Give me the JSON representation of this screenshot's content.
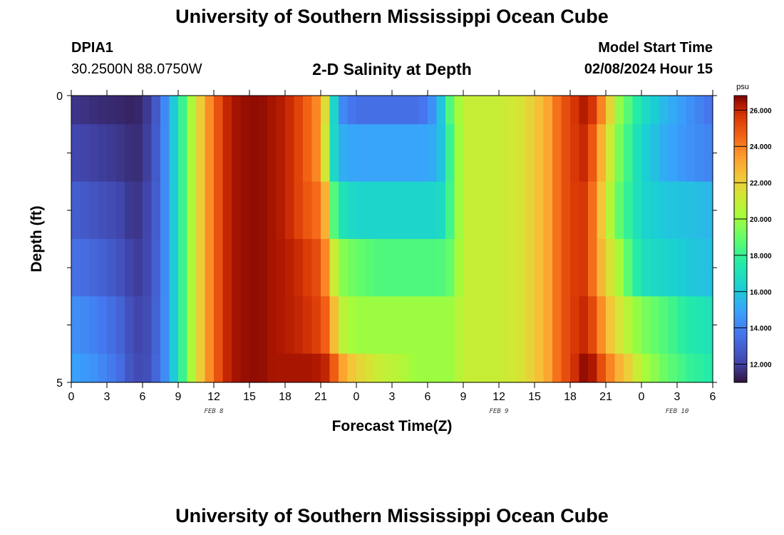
{
  "header": {
    "title": "University of Southern Mississippi Ocean Cube",
    "station": "DPIA1",
    "coords": "30.2500N  88.0750W",
    "subtitle": "2-D Salinity at Depth",
    "start_label": "Model Start Time",
    "start_value": "02/08/2024 Hour 15"
  },
  "footer": {
    "title": "University of Southern Mississippi Ocean Cube"
  },
  "chart_data": {
    "type": "heatmap",
    "title": "2-D Salinity at Depth",
    "xlabel": "Forecast Time(Z)",
    "ylabel": "Depth (ft)",
    "x_ticks": [
      "0",
      "3",
      "6",
      "9",
      "12",
      "15",
      "18",
      "21",
      "0",
      "3",
      "6",
      "9",
      "12",
      "15",
      "18",
      "21",
      "0",
      "3",
      "6"
    ],
    "x_tick_hours": [
      0,
      3,
      6,
      9,
      12,
      15,
      18,
      21,
      24,
      27,
      30,
      33,
      36,
      39,
      42,
      45,
      48,
      51,
      54
    ],
    "x_range_hours": [
      0,
      54
    ],
    "date_labels": [
      {
        "text": "FEB 8",
        "hour": 12
      },
      {
        "text": "FEB 9",
        "hour": 36
      },
      {
        "text": "FEB 10",
        "hour": 51
      }
    ],
    "y_range": [
      0,
      5
    ],
    "y_tick_labels": [
      "0",
      "5"
    ],
    "colorbar": {
      "unit": "psu",
      "min": 11,
      "max": 26.8,
      "ticks": [
        "12.000",
        "14.000",
        "16.000",
        "18.000",
        "20.000",
        "22.000",
        "24.000",
        "26.000"
      ],
      "tick_values": [
        12,
        14,
        16,
        18,
        20,
        22,
        24,
        26
      ]
    },
    "depth_bands": [
      0,
      0.5,
      1.5,
      2.5,
      3.5,
      4.5,
      5
    ],
    "profile_hours": [
      0,
      2,
      4,
      5,
      6,
      7,
      8,
      9,
      10,
      11,
      12,
      13,
      14,
      15,
      16,
      17,
      18,
      19,
      20,
      21,
      21.5,
      22,
      22.5,
      23,
      24,
      26,
      28,
      29,
      30,
      31,
      32,
      33,
      34,
      36,
      38,
      40,
      41,
      42,
      43,
      43.5,
      44,
      45,
      46,
      47,
      48,
      50,
      52,
      54
    ],
    "salinity_psu": [
      [
        11.8,
        11.6,
        11.5,
        11.4,
        11.5,
        12.5,
        14.5,
        17,
        20,
        22.5,
        24.5,
        26,
        26.5,
        26.6,
        26.6,
        26.4,
        26.2,
        25.5,
        24.5,
        23.5,
        21,
        17,
        15,
        14,
        13.5,
        13.5,
        13.5,
        13.5,
        13.8,
        15.5,
        19,
        21,
        21,
        21,
        21.5,
        23,
        24.5,
        25.5,
        26.2,
        26.5,
        25.5,
        23,
        20,
        18.5,
        17,
        15.5,
        14.5,
        13.5
      ],
      [
        12.2,
        12.0,
        11.8,
        11.6,
        11.6,
        12.6,
        14.5,
        17,
        20,
        22.5,
        24.5,
        26,
        26.5,
        26.6,
        26.6,
        26.4,
        26.2,
        25.5,
        24.5,
        23.5,
        20.5,
        17,
        15.5,
        15.2,
        15,
        15,
        15,
        15,
        15,
        15.5,
        18.5,
        21,
        21,
        21,
        21.5,
        23,
        24.5,
        25.5,
        26,
        26,
        24.5,
        22,
        19.5,
        18,
        16.5,
        15.2,
        14.5,
        14
      ],
      [
        13.0,
        12.6,
        12.2,
        11.8,
        11.8,
        12.7,
        14.5,
        17,
        20,
        22.5,
        24.5,
        26,
        26.5,
        26.6,
        26.6,
        26.4,
        26.2,
        25.5,
        24.8,
        24.2,
        22.5,
        19,
        17.5,
        17,
        16.5,
        16.5,
        16.5,
        16.5,
        16.5,
        16.5,
        18.5,
        21,
        21,
        21,
        21.5,
        23,
        24.5,
        25.5,
        25.8,
        25.5,
        24,
        21.5,
        19,
        17.8,
        16.5,
        16,
        15.8,
        15.5
      ],
      [
        13.6,
        13.2,
        12.6,
        12.0,
        11.9,
        12.8,
        14.5,
        17,
        20,
        22.5,
        24.5,
        26,
        26.5,
        26.6,
        26.6,
        26.4,
        26.3,
        26,
        25.5,
        25,
        23.5,
        21.5,
        20,
        19.5,
        19,
        18.5,
        18.5,
        18.5,
        18.5,
        18.5,
        19,
        21,
        21,
        21,
        21.5,
        23,
        24.5,
        25.5,
        25.8,
        25.5,
        24,
        22,
        20.5,
        18.5,
        17,
        16.5,
        16,
        15.8
      ],
      [
        14.5,
        14.0,
        13.2,
        12.4,
        12.0,
        12.9,
        14.5,
        17,
        20,
        22.5,
        24.5,
        26,
        26.5,
        26.6,
        26.6,
        26.4,
        26.3,
        26.1,
        25.8,
        25.3,
        24.5,
        23,
        21.5,
        20.5,
        20,
        20,
        20,
        20,
        20,
        20,
        20,
        21,
        21,
        21,
        21.5,
        23,
        24.5,
        25.5,
        26,
        26,
        25,
        23,
        21.5,
        20.5,
        19.5,
        18.5,
        17.5,
        17
      ],
      [
        15.0,
        14.5,
        13.5,
        12.6,
        12.1,
        13.0,
        14.5,
        17,
        20,
        22.5,
        24.5,
        26,
        26.5,
        26.6,
        26.6,
        26.4,
        26.4,
        26.4,
        26.4,
        26.3,
        26,
        25,
        24,
        23,
        22,
        21,
        20.5,
        20,
        20,
        20,
        20,
        21,
        21,
        21,
        21.5,
        23,
        24.5,
        25.5,
        26.5,
        26.8,
        26.2,
        24.5,
        23,
        22,
        20.5,
        19,
        18,
        17.5
      ]
    ]
  }
}
